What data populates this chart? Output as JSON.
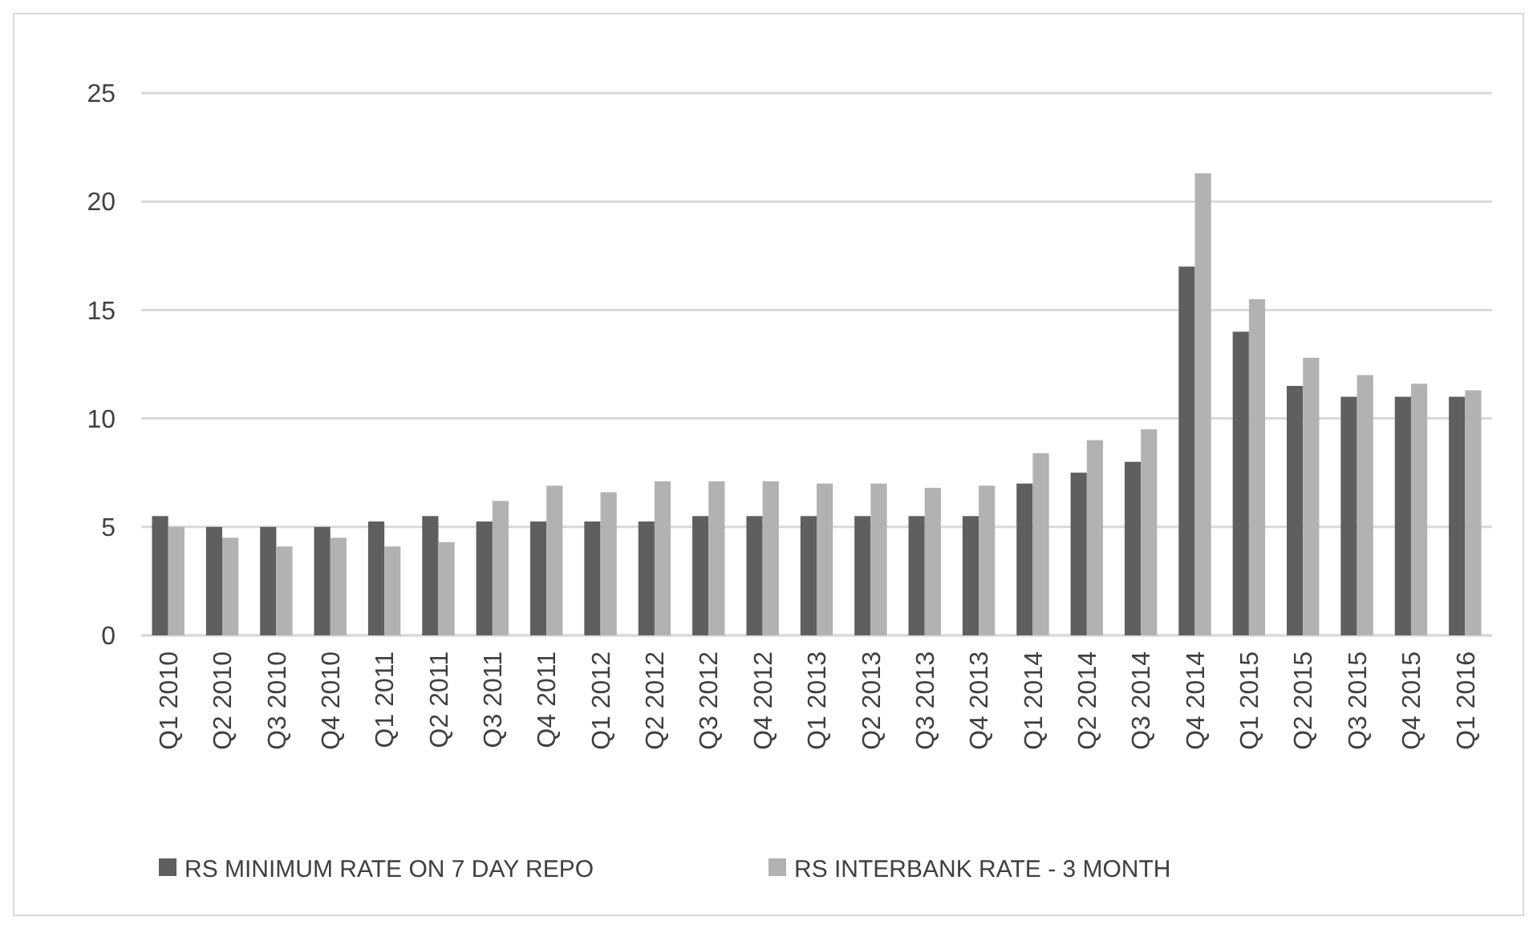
{
  "chart_data": {
    "type": "bar",
    "categories": [
      "Q1 2010",
      "Q2 2010",
      "Q3 2010",
      "Q4 2010",
      "Q1 2011",
      "Q2 2011",
      "Q3 2011",
      "Q4 2011",
      "Q1 2012",
      "Q2 2012",
      "Q3 2012",
      "Q4 2012",
      "Q1 2013",
      "Q2 2013",
      "Q3 2013",
      "Q4 2013",
      "Q1 2014",
      "Q2 2014",
      "Q3 2014",
      "Q4 2014",
      "Q1 2015",
      "Q2 2015",
      "Q3 2015",
      "Q4 2015",
      "Q1 2016"
    ],
    "series": [
      {
        "name": "RS MINIMUM RATE ON 7 DAY REPO",
        "color": "#5f5f5f",
        "values": [
          5.5,
          5.0,
          5.0,
          5.0,
          5.25,
          5.5,
          5.25,
          5.25,
          5.25,
          5.25,
          5.5,
          5.5,
          5.5,
          5.5,
          5.5,
          5.5,
          7.0,
          7.5,
          8.0,
          17.0,
          14.0,
          11.5,
          11.0,
          11.0,
          11.0
        ]
      },
      {
        "name": "RS INTERBANK RATE - 3 MONTH",
        "color": "#b2b2b2",
        "values": [
          5.0,
          4.5,
          4.1,
          4.5,
          4.1,
          4.3,
          6.2,
          6.9,
          6.6,
          7.1,
          7.1,
          7.1,
          7.0,
          7.0,
          6.8,
          6.9,
          8.4,
          9.0,
          9.5,
          21.3,
          15.5,
          12.8,
          12.0,
          11.6,
          11.3
        ]
      }
    ],
    "ylim": [
      0,
      25
    ],
    "yticks": [
      0,
      5,
      10,
      15,
      20,
      25
    ],
    "grid": "y",
    "legend": "bottom"
  }
}
